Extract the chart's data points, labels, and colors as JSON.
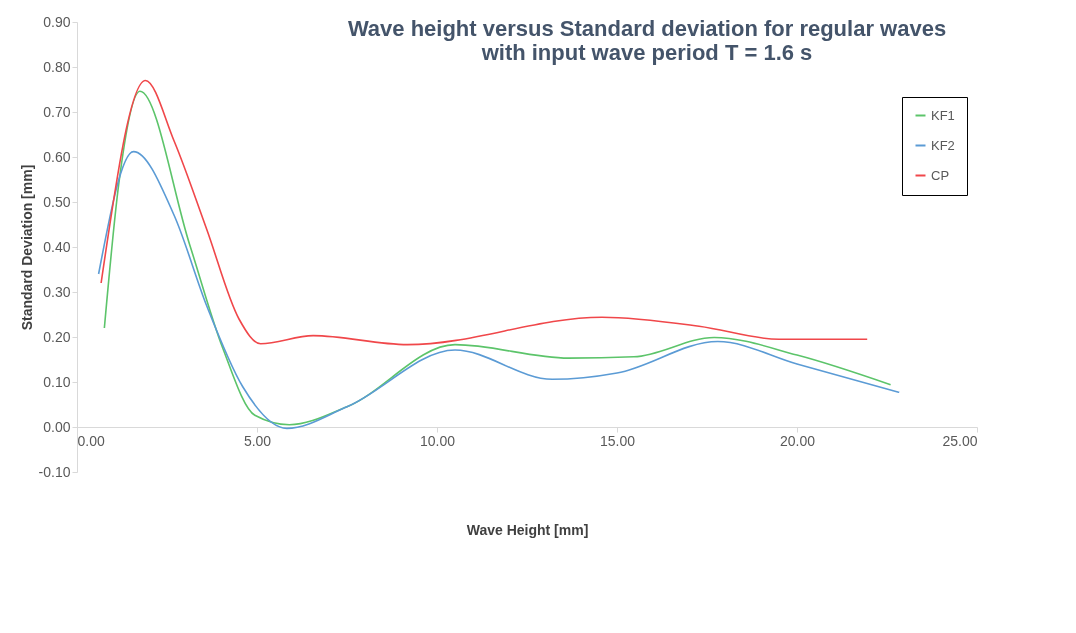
{
  "chart_data": {
    "type": "line",
    "title": [
      "Wave height versus Standard deviation for regular waves",
      "with input wave period T = 1.6 s"
    ],
    "xlabel": "Wave Height [mm]",
    "ylabel": "Standard Deviation [mm]",
    "xlim": [
      0,
      25
    ],
    "xticks": [
      {
        "value": 0,
        "label": "0.00"
      },
      {
        "value": 5,
        "label": "5.00"
      },
      {
        "value": 10,
        "label": "10.00"
      },
      {
        "value": 15,
        "label": "15.00"
      },
      {
        "value": 20,
        "label": "20.00"
      },
      {
        "value": 25,
        "label": "25.00"
      }
    ],
    "ylim": [
      -0.1,
      0.9
    ],
    "yticks": [
      {
        "value": -0.1,
        "label": "-0.10"
      },
      {
        "value": 0,
        "label": "0.00"
      },
      {
        "value": 0.1,
        "label": "0.10"
      },
      {
        "value": 0.2,
        "label": "0.20"
      },
      {
        "value": 0.3,
        "label": "0.30"
      },
      {
        "value": 0.4,
        "label": "0.40"
      },
      {
        "value": 0.5,
        "label": "0.50"
      },
      {
        "value": 0.6,
        "label": "0.60"
      },
      {
        "value": 0.7,
        "label": "0.70"
      },
      {
        "value": 0.8,
        "label": "0.80"
      },
      {
        "value": 0.9,
        "label": "0.90"
      }
    ],
    "grid": false,
    "legend": "top right",
    "marker": "none",
    "line_style": "solid",
    "series": [
      {
        "name": "KF1",
        "color": "#5cc46a",
        "x": [
          0.76,
          1.16,
          1.75,
          3.13,
          4.05,
          4.94,
          5.9,
          7.5,
          10.5,
          13.66,
          15.47,
          17.7,
          20.0,
          22.6
        ],
        "values": [
          0.22,
          0.54,
          0.746,
          0.405,
          0.175,
          0.026,
          0.005,
          0.045,
          0.183,
          0.153,
          0.156,
          0.199,
          0.16,
          0.094
        ]
      },
      {
        "name": "KF2",
        "color": "#5b9bd5",
        "x": [
          0.6,
          1.57,
          2.7,
          3.6,
          4.6,
          5.83,
          7.5,
          10.5,
          13.2,
          15.0,
          17.8,
          20.0,
          22.84
        ],
        "values": [
          0.34,
          0.612,
          0.47,
          0.27,
          0.09,
          -0.003,
          0.045,
          0.171,
          0.106,
          0.12,
          0.19,
          0.14,
          0.077
        ]
      },
      {
        "name": "CP",
        "color": "#f0474a",
        "x": [
          0.67,
          1.9,
          2.7,
          3.6,
          4.5,
          5.1,
          6.56,
          9.18,
          14.58,
          17.28,
          19.5,
          21.95
        ],
        "values": [
          0.32,
          0.77,
          0.635,
          0.44,
          0.24,
          0.185,
          0.203,
          0.183,
          0.244,
          0.224,
          0.195,
          0.195
        ]
      }
    ]
  }
}
